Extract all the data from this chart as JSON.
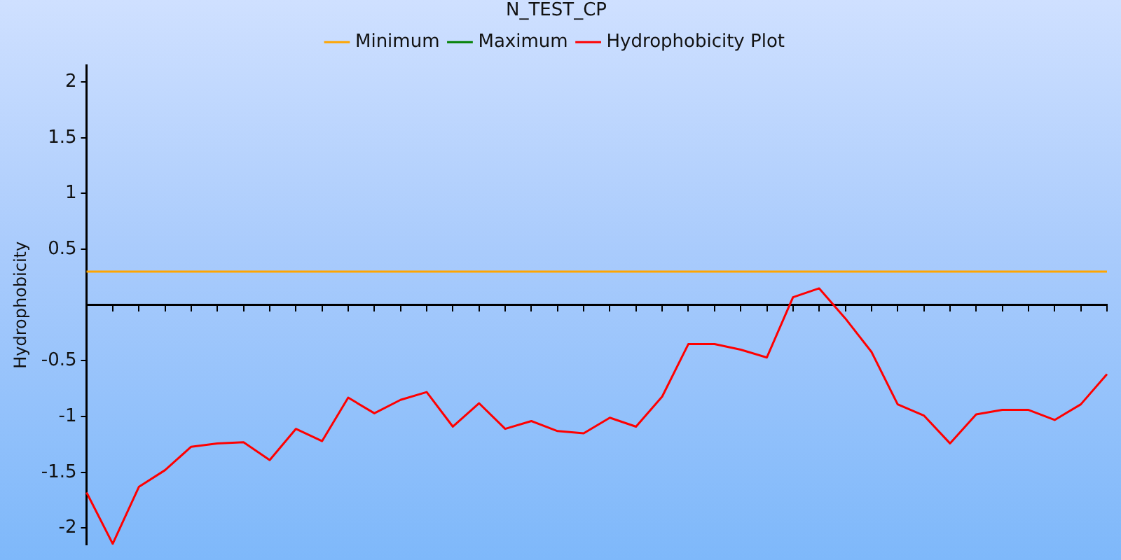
{
  "chart_data": {
    "type": "line",
    "title": "N_TEST_CP",
    "ylabel": "Hydrophobicity",
    "categories": [
      null,
      null,
      null,
      null,
      null,
      null,
      null,
      null,
      null,
      null,
      null,
      null,
      null,
      null,
      null,
      null,
      null,
      null,
      null,
      null,
      null,
      null,
      null,
      null,
      null,
      null,
      null,
      null,
      null,
      null,
      null,
      null,
      null,
      null,
      null,
      null,
      null,
      null,
      null,
      null
    ],
    "series": [
      {
        "name": "Minimum",
        "color": "#ffa500",
        "values": [
          0.3,
          0.3,
          0.3,
          0.3,
          0.3,
          0.3,
          0.3,
          0.3,
          0.3,
          0.3,
          0.3,
          0.3,
          0.3,
          0.3,
          0.3,
          0.3,
          0.3,
          0.3,
          0.3,
          0.3,
          0.3,
          0.3,
          0.3,
          0.3,
          0.3,
          0.3,
          0.3,
          0.3,
          0.3,
          0.3,
          0.3,
          0.3,
          0.3,
          0.3,
          0.3,
          0.3,
          0.3,
          0.3,
          0.3,
          0.3
        ]
      },
      {
        "name": "Maximum",
        "color": "#008000",
        "values": [
          null,
          null,
          null,
          null,
          null,
          null,
          null,
          null,
          null,
          null,
          null,
          null,
          null,
          null,
          null,
          null,
          null,
          null,
          null,
          null,
          null,
          null,
          null,
          null,
          null,
          null,
          null,
          null,
          null,
          null,
          null,
          null,
          null,
          null,
          null,
          null,
          null,
          null,
          null,
          null
        ]
      },
      {
        "name": "Hydrophobicity Plot",
        "color": "#ff0000",
        "values": [
          -1.68,
          -2.14,
          -1.63,
          -1.48,
          -1.27,
          -1.24,
          -1.23,
          -1.39,
          -1.11,
          -1.22,
          -0.83,
          -0.97,
          -0.85,
          -0.78,
          -1.09,
          -0.88,
          -1.11,
          -1.04,
          -1.13,
          -1.15,
          -1.01,
          -1.09,
          -0.82,
          -0.35,
          -0.35,
          -0.4,
          -0.47,
          0.07,
          0.15,
          -0.12,
          -0.42,
          -0.89,
          -0.99,
          -1.24,
          -0.98,
          -0.94,
          -0.94,
          -1.03,
          -0.89,
          -0.62
        ]
      }
    ],
    "ylim": [
      -2.15,
      2.15
    ],
    "yticks": [
      -2,
      -1.5,
      -1,
      -0.5,
      0.5,
      1,
      1.5,
      2
    ],
    "legend": "top",
    "tick_labels": "y",
    "marker": "none"
  }
}
